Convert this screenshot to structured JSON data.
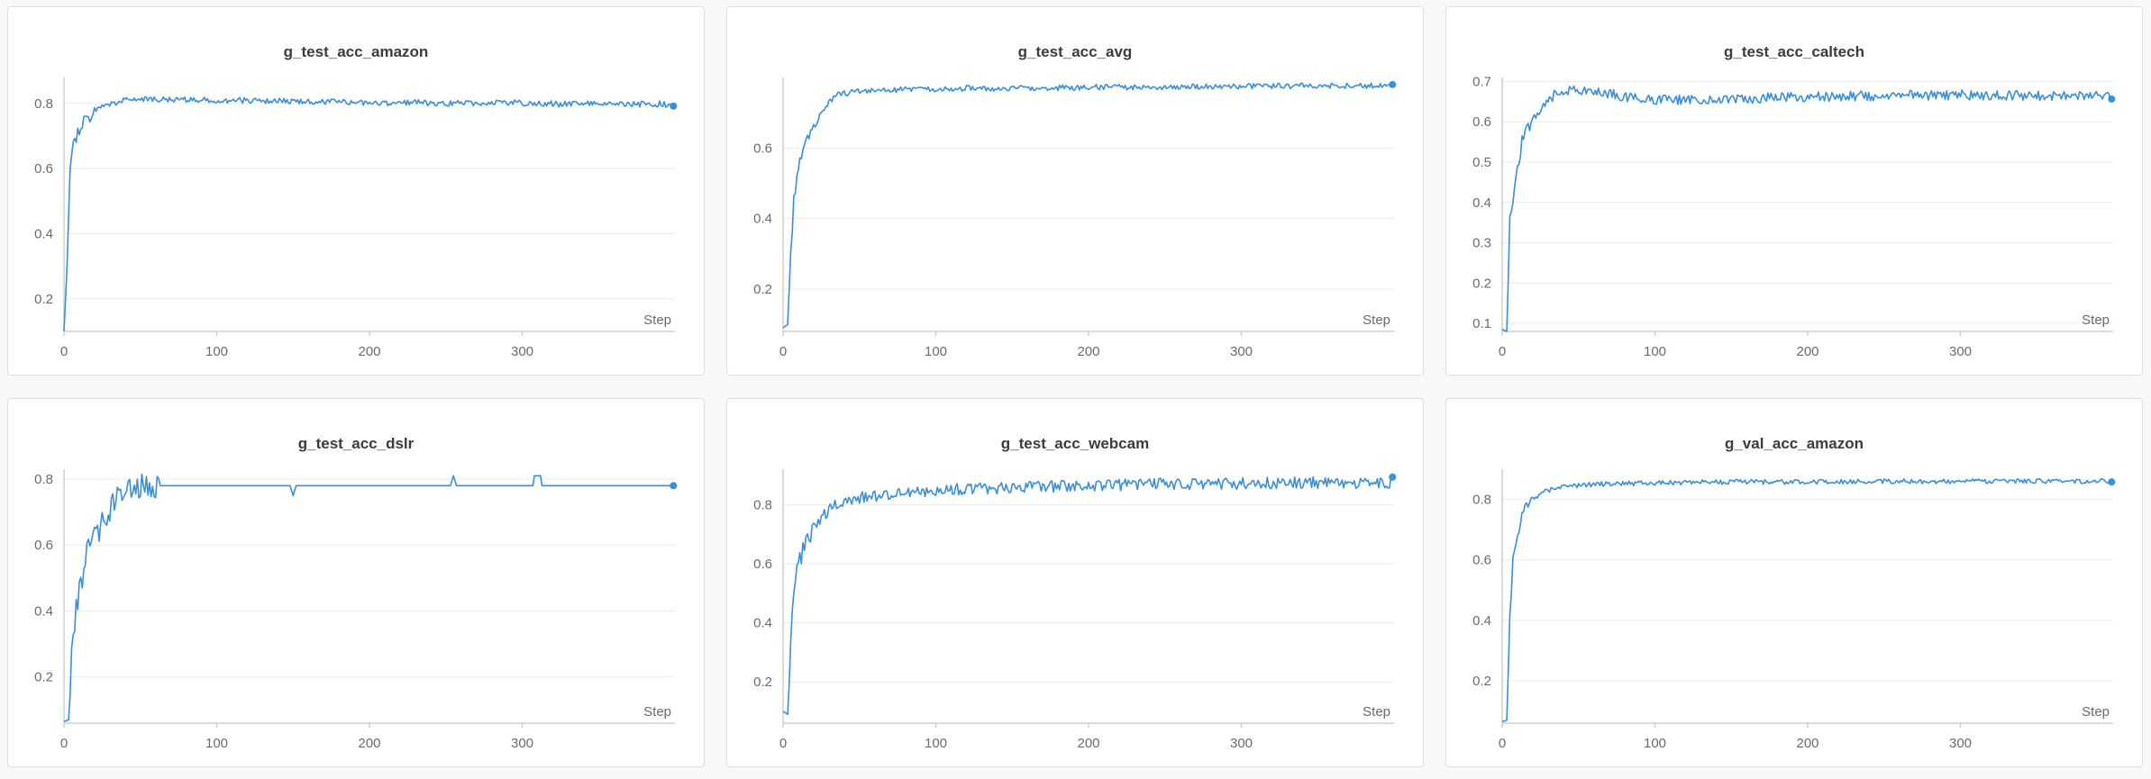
{
  "x_axis_label": "Step",
  "chart_data": [
    {
      "type": "line",
      "title": "g_test_acc_amazon",
      "xlabel": "Step",
      "ylabel": "",
      "xlim": [
        0,
        400
      ],
      "ylim": [
        0.1,
        0.88
      ],
      "x_ticks": [
        0,
        100,
        200,
        300
      ],
      "y_ticks": [
        0.2,
        0.4,
        0.6,
        0.8
      ],
      "grid": true,
      "legend": "none",
      "series": [
        {
          "color": "#3a8fd8",
          "points": [
            [
              0,
              0.1
            ],
            [
              2,
              0.3
            ],
            [
              4,
              0.6
            ],
            [
              6,
              0.67
            ],
            [
              8,
              0.7
            ],
            [
              10,
              0.72
            ],
            [
              12,
              0.74
            ],
            [
              14,
              0.76
            ],
            [
              17,
              0.75
            ],
            [
              20,
              0.78
            ],
            [
              25,
              0.79
            ],
            [
              30,
              0.8
            ],
            [
              40,
              0.81
            ],
            [
              50,
              0.815
            ],
            [
              70,
              0.81
            ],
            [
              90,
              0.812
            ],
            [
              110,
              0.81
            ],
            [
              130,
              0.808
            ],
            [
              150,
              0.806
            ],
            [
              170,
              0.805
            ],
            [
              190,
              0.803
            ],
            [
              210,
              0.802
            ],
            [
              230,
              0.803
            ],
            [
              250,
              0.8
            ],
            [
              270,
              0.802
            ],
            [
              290,
              0.803
            ],
            [
              310,
              0.8
            ],
            [
              330,
              0.798
            ],
            [
              350,
              0.8
            ],
            [
              370,
              0.798
            ],
            [
              390,
              0.799
            ],
            [
              399,
              0.795
            ]
          ],
          "noise": 0.009
        }
      ]
    },
    {
      "type": "line",
      "title": "g_test_acc_avg",
      "xlabel": "Step",
      "ylabel": "",
      "xlim": [
        0,
        400
      ],
      "ylim": [
        0.08,
        0.8
      ],
      "x_ticks": [
        0,
        100,
        200,
        300
      ],
      "y_ticks": [
        0.2,
        0.4,
        0.6
      ],
      "grid": true,
      "legend": "none",
      "series": [
        {
          "color": "#3a8fd8",
          "points": [
            [
              0,
              0.09
            ],
            [
              3,
              0.1
            ],
            [
              5,
              0.3
            ],
            [
              7,
              0.45
            ],
            [
              10,
              0.55
            ],
            [
              13,
              0.6
            ],
            [
              16,
              0.63
            ],
            [
              20,
              0.66
            ],
            [
              25,
              0.7
            ],
            [
              30,
              0.73
            ],
            [
              35,
              0.75
            ],
            [
              40,
              0.755
            ],
            [
              50,
              0.76
            ],
            [
              70,
              0.765
            ],
            [
              100,
              0.768
            ],
            [
              150,
              0.77
            ],
            [
              200,
              0.772
            ],
            [
              250,
              0.773
            ],
            [
              300,
              0.775
            ],
            [
              350,
              0.776
            ],
            [
              399,
              0.776
            ]
          ],
          "noise": 0.008
        }
      ]
    },
    {
      "type": "line",
      "title": "g_test_acc_caltech",
      "xlabel": "Step",
      "ylabel": "",
      "xlim": [
        0,
        400
      ],
      "ylim": [
        0.08,
        0.71
      ],
      "x_ticks": [
        0,
        100,
        200,
        300
      ],
      "y_ticks": [
        0.1,
        0.2,
        0.3,
        0.4,
        0.5,
        0.6,
        0.7
      ],
      "grid": true,
      "legend": "none",
      "series": [
        {
          "color": "#3a8fd8",
          "points": [
            [
              0,
              0.085
            ],
            [
              3,
              0.08
            ],
            [
              5,
              0.35
            ],
            [
              7,
              0.42
            ],
            [
              10,
              0.5
            ],
            [
              13,
              0.55
            ],
            [
              16,
              0.58
            ],
            [
              20,
              0.6
            ],
            [
              25,
              0.63
            ],
            [
              30,
              0.65
            ],
            [
              35,
              0.67
            ],
            [
              40,
              0.675
            ],
            [
              50,
              0.68
            ],
            [
              60,
              0.675
            ],
            [
              70,
              0.67
            ],
            [
              80,
              0.662
            ],
            [
              100,
              0.655
            ],
            [
              130,
              0.655
            ],
            [
              160,
              0.658
            ],
            [
              200,
              0.662
            ],
            [
              250,
              0.665
            ],
            [
              300,
              0.667
            ],
            [
              350,
              0.665
            ],
            [
              399,
              0.665
            ]
          ],
          "noise": 0.012
        }
      ]
    },
    {
      "type": "line",
      "title": "g_test_acc_dslr",
      "xlabel": "Step",
      "ylabel": "",
      "xlim": [
        0,
        400
      ],
      "ylim": [
        0.06,
        0.83
      ],
      "x_ticks": [
        0,
        100,
        200,
        300
      ],
      "y_ticks": [
        0.2,
        0.4,
        0.6,
        0.8
      ],
      "grid": true,
      "legend": "none",
      "series": [
        {
          "color": "#3a8fd8",
          "points": [
            [
              0,
              0.065
            ],
            [
              3,
              0.07
            ],
            [
              6,
              0.3
            ],
            [
              8,
              0.45
            ],
            [
              10,
              0.5
            ],
            [
              13,
              0.55
            ],
            [
              16,
              0.58
            ],
            [
              20,
              0.62
            ],
            [
              25,
              0.66
            ],
            [
              30,
              0.7
            ],
            [
              35,
              0.74
            ],
            [
              40,
              0.76
            ],
            [
              45,
              0.77
            ],
            [
              50,
              0.78
            ],
            [
              70,
              0.78
            ],
            [
              148,
              0.78
            ],
            [
              150,
              0.75
            ],
            [
              152,
              0.78
            ],
            [
              253,
              0.78
            ],
            [
              255,
              0.81
            ],
            [
              257,
              0.78
            ],
            [
              307,
              0.78
            ],
            [
              308,
              0.81
            ],
            [
              312,
              0.81
            ],
            [
              313,
              0.78
            ],
            [
              399,
              0.78
            ]
          ],
          "noise_until": 62,
          "noise": 0.04
        }
      ]
    },
    {
      "type": "line",
      "title": "g_test_acc_webcam",
      "xlabel": "Step",
      "ylabel": "",
      "xlim": [
        0,
        400
      ],
      "ylim": [
        0.06,
        0.92
      ],
      "x_ticks": [
        0,
        100,
        200,
        300
      ],
      "y_ticks": [
        0.2,
        0.4,
        0.6,
        0.8
      ],
      "grid": true,
      "legend": "none",
      "series": [
        {
          "color": "#3a8fd8",
          "points": [
            [
              0,
              0.1
            ],
            [
              3,
              0.09
            ],
            [
              5,
              0.3
            ],
            [
              7,
              0.5
            ],
            [
              10,
              0.6
            ],
            [
              14,
              0.66
            ],
            [
              18,
              0.7
            ],
            [
              22,
              0.74
            ],
            [
              28,
              0.77
            ],
            [
              35,
              0.8
            ],
            [
              45,
              0.82
            ],
            [
              60,
              0.83
            ],
            [
              80,
              0.84
            ],
            [
              100,
              0.85
            ],
            [
              130,
              0.855
            ],
            [
              160,
              0.86
            ],
            [
              200,
              0.865
            ],
            [
              250,
              0.87
            ],
            [
              300,
              0.872
            ],
            [
              350,
              0.875
            ],
            [
              399,
              0.875
            ]
          ],
          "noise": 0.02
        }
      ]
    },
    {
      "type": "line",
      "title": "g_val_acc_amazon",
      "xlabel": "Step",
      "ylabel": "",
      "xlim": [
        0,
        400
      ],
      "ylim": [
        0.06,
        0.9
      ],
      "x_ticks": [
        0,
        100,
        200,
        300
      ],
      "y_ticks": [
        0.2,
        0.4,
        0.6,
        0.8
      ],
      "grid": true,
      "legend": "none",
      "series": [
        {
          "color": "#3a8fd8",
          "points": [
            [
              0,
              0.065
            ],
            [
              3,
              0.07
            ],
            [
              5,
              0.4
            ],
            [
              7,
              0.6
            ],
            [
              9,
              0.65
            ],
            [
              11,
              0.7
            ],
            [
              13,
              0.76
            ],
            [
              16,
              0.78
            ],
            [
              20,
              0.8
            ],
            [
              25,
              0.82
            ],
            [
              30,
              0.83
            ],
            [
              40,
              0.84
            ],
            [
              60,
              0.85
            ],
            [
              100,
              0.855
            ],
            [
              150,
              0.858
            ],
            [
              200,
              0.858
            ],
            [
              250,
              0.86
            ],
            [
              300,
              0.86
            ],
            [
              350,
              0.86
            ],
            [
              399,
              0.86
            ]
          ],
          "noise": 0.008
        }
      ]
    }
  ]
}
